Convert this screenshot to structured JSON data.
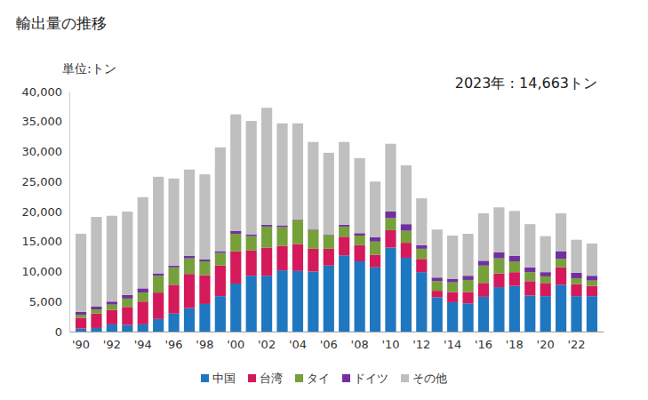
{
  "chart_data": {
    "type": "bar",
    "stacked": true,
    "title": "輸出量の推移",
    "y_label": "単位:トン",
    "annotation": "2023年 : 14,663トン",
    "legend": "bottom",
    "grid": false,
    "categories": [
      "'90",
      null,
      "'92",
      null,
      "'94",
      null,
      "'96",
      null,
      "'98",
      null,
      "'00",
      null,
      "'02",
      null,
      "'04",
      null,
      "'06",
      null,
      "'08",
      null,
      "'10",
      null,
      "'12",
      null,
      "'14",
      null,
      "'16",
      null,
      "'18",
      null,
      "'20",
      null,
      "'22",
      null
    ],
    "ylim": [
      0,
      40000
    ],
    "yticks": [
      0,
      {
        "value": 5000,
        "label": "5,000"
      },
      {
        "value": 10000,
        "label": "10,000"
      },
      {
        "value": 15000,
        "label": "15,000"
      },
      {
        "value": 20000,
        "label": "20,000"
      },
      {
        "value": 25000,
        "label": "25,000"
      },
      {
        "value": 30000,
        "label": "30,000"
      },
      {
        "value": 35000,
        "label": "35,000"
      },
      {
        "value": 40000,
        "label": "40,000"
      }
    ],
    "series": [
      {
        "name": "中国",
        "color": "#1f77c0",
        "values": [
          500,
          600,
          1200,
          1100,
          1200,
          2100,
          3000,
          3900,
          4600,
          5900,
          8000,
          9300,
          9300,
          10200,
          10100,
          10000,
          11000,
          12700,
          11700,
          10700,
          14000,
          12300,
          9900,
          5700,
          4900,
          4700,
          5800,
          7400,
          7600,
          6000,
          5900,
          7800,
          5900,
          5900
        ]
      },
      {
        "name": "台湾",
        "color": "#d41a5a",
        "values": [
          1800,
          2400,
          2400,
          3000,
          3800,
          4400,
          4800,
          5700,
          4800,
          5100,
          5400,
          4200,
          4700,
          4100,
          4500,
          3800,
          2800,
          3100,
          2700,
          2100,
          2900,
          2500,
          2200,
          1100,
          1700,
          1900,
          2300,
          2300,
          2300,
          2400,
          2200,
          2900,
          2000,
          1700
        ]
      },
      {
        "name": "タイ",
        "color": "#76a03a",
        "values": [
          500,
          700,
          900,
          1400,
          1500,
          2800,
          2900,
          2600,
          2300,
          2100,
          2900,
          2400,
          3500,
          3100,
          4000,
          3100,
          2300,
          1700,
          1600,
          2200,
          2000,
          2000,
          1700,
          1600,
          1600,
          2000,
          2900,
          2500,
          1800,
          1500,
          1100,
          1400,
          1000,
          900
        ]
      },
      {
        "name": "ドイツ",
        "color": "#7030a0",
        "values": [
          500,
          500,
          500,
          600,
          700,
          400,
          300,
          400,
          300,
          300,
          500,
          300,
          300,
          300,
          100,
          100,
          100,
          300,
          400,
          700,
          1100,
          1100,
          600,
          600,
          600,
          700,
          800,
          1000,
          900,
          800,
          700,
          1300,
          900,
          800
        ]
      },
      {
        "name": "その他",
        "color": "#bfbfbf",
        "values": [
          13000,
          14900,
          14300,
          13900,
          15200,
          16100,
          14500,
          14400,
          14200,
          17300,
          19400,
          18900,
          19500,
          17000,
          16000,
          14600,
          13600,
          13800,
          12500,
          9300,
          11300,
          9800,
          7800,
          8000,
          7200,
          7000,
          7900,
          7500,
          7500,
          7200,
          6000,
          6300,
          5500,
          5363
        ]
      }
    ]
  }
}
